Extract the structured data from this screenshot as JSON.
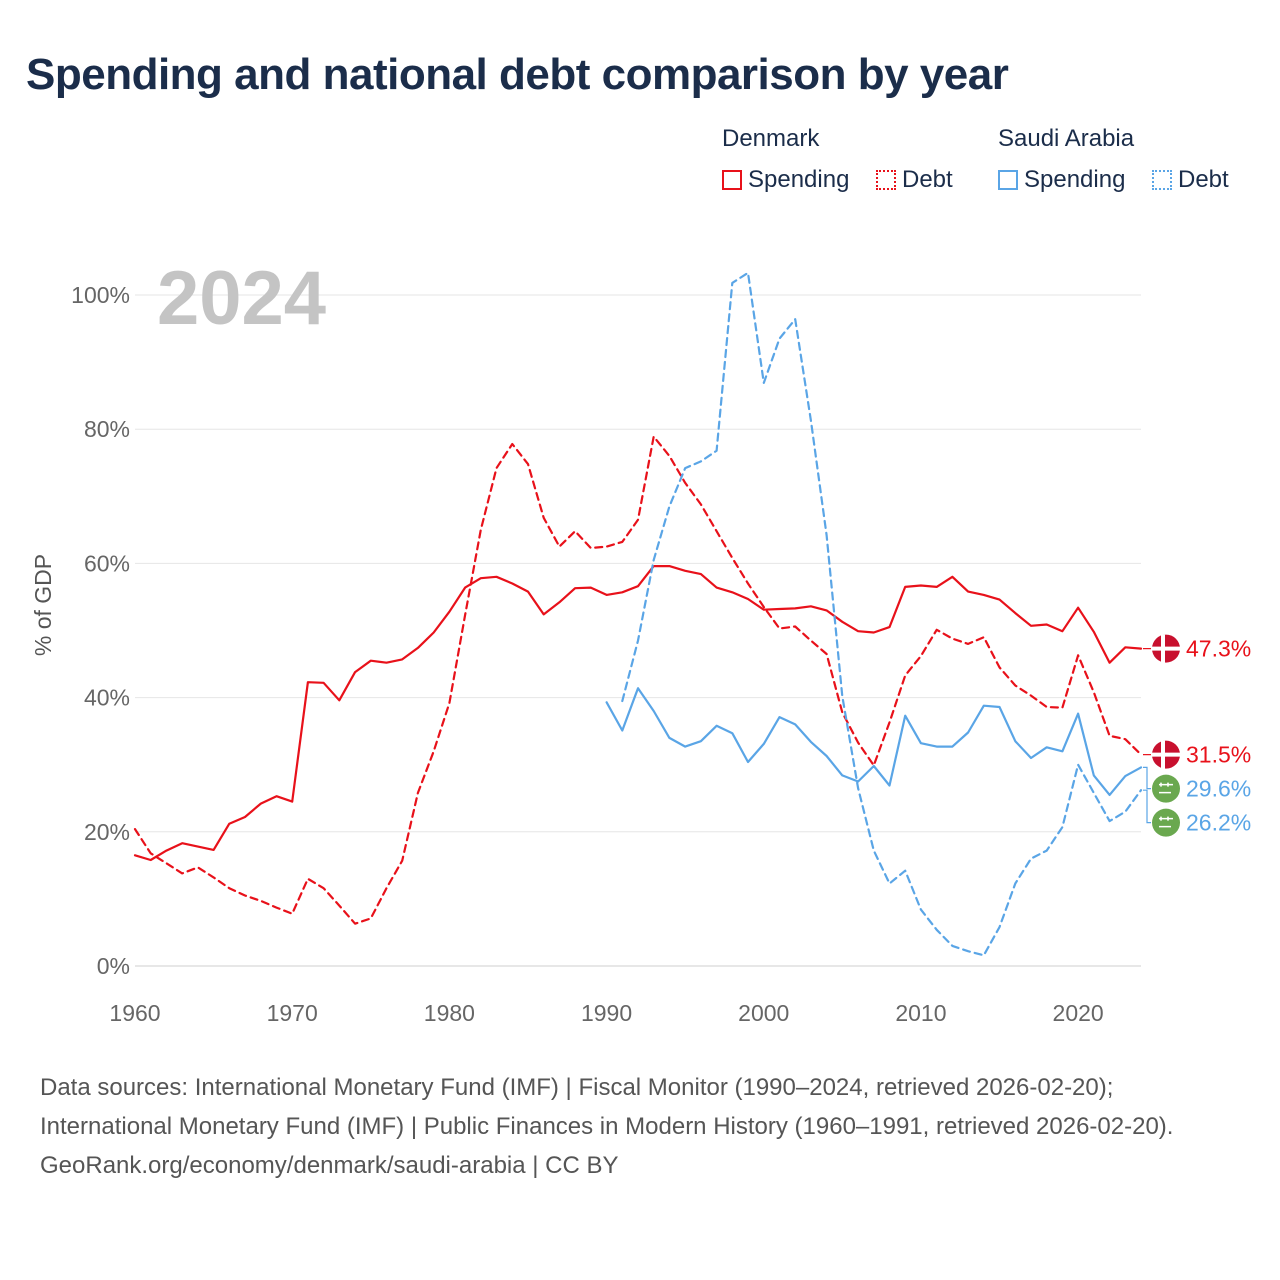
{
  "title": "Spending and national debt comparison by year",
  "legend": {
    "groups": [
      {
        "country": "Denmark",
        "color": "#e8111a",
        "items": [
          "Spending",
          "Debt"
        ]
      },
      {
        "country": "Saudi Arabia",
        "color": "#5aa5e6",
        "items": [
          "Spending",
          "Debt"
        ]
      }
    ]
  },
  "year_watermark": "2024",
  "sources": {
    "text": "Data sources: International Monetary Fund (IMF) | Fiscal Monitor (1990–2024, retrieved 2026-02-20); International Monetary Fund (IMF) | Public Finances in Modern History (1960–1991, retrieved 2026-02-20).",
    "credit": "GeoRank.org/economy/denmark/saudi-arabia | CC BY"
  },
  "chart_data": {
    "type": "line",
    "title": "Spending and national debt comparison by year",
    "xlabel": "",
    "ylabel": "% of GDP",
    "xlim": [
      1960,
      2024
    ],
    "ylim": [
      0,
      100
    ],
    "x_ticks": [
      1960,
      1970,
      1980,
      1990,
      2000,
      2010,
      2020
    ],
    "y_ticks": [
      0,
      20,
      40,
      60,
      80,
      100
    ],
    "y_tick_labels": [
      "0%",
      "20%",
      "40%",
      "60%",
      "80%",
      "100%"
    ],
    "grid": true,
    "series": [
      {
        "name": "Denmark Spending",
        "country": "Denmark",
        "measure": "Spending",
        "color": "#e8111a",
        "dash": "solid",
        "end_label": "47.3%",
        "flag": "denmark",
        "x": [
          1960,
          1961,
          1962,
          1963,
          1964,
          1965,
          1966,
          1967,
          1968,
          1969,
          1970,
          1971,
          1972,
          1973,
          1974,
          1975,
          1976,
          1977,
          1978,
          1979,
          1980,
          1981,
          1982,
          1983,
          1984,
          1985,
          1986,
          1987,
          1988,
          1989,
          1990,
          1991,
          1992,
          1993,
          1994,
          1995,
          1996,
          1997,
          1998,
          1999,
          2000,
          2001,
          2002,
          2003,
          2004,
          2005,
          2006,
          2007,
          2008,
          2009,
          2010,
          2011,
          2012,
          2013,
          2014,
          2015,
          2016,
          2017,
          2018,
          2019,
          2020,
          2021,
          2022,
          2023,
          2024
        ],
        "values": [
          16.5,
          15.8,
          17.2,
          18.3,
          17.8,
          17.3,
          21.2,
          22.2,
          24.2,
          25.3,
          24.5,
          42.3,
          42.2,
          39.6,
          43.8,
          45.5,
          45.2,
          45.7,
          47.4,
          49.7,
          52.8,
          56.4,
          57.8,
          58.0,
          57.0,
          55.8,
          52.4,
          54.2,
          56.3,
          56.4,
          55.3,
          55.7,
          56.6,
          59.6,
          59.6,
          58.9,
          58.4,
          56.4,
          55.7,
          54.7,
          53.1,
          53.2,
          53.3,
          53.6,
          53.0,
          51.3,
          49.9,
          49.7,
          50.5,
          56.5,
          56.7,
          56.5,
          58.0,
          55.8,
          55.3,
          54.6,
          52.6,
          50.7,
          50.9,
          49.9,
          53.4,
          49.8,
          45.2,
          47.5,
          47.3
        ]
      },
      {
        "name": "Denmark Debt",
        "country": "Denmark",
        "measure": "Debt",
        "color": "#e8111a",
        "dash": "dashed",
        "end_label": "31.5%",
        "flag": "denmark",
        "x": [
          1960,
          1961,
          1962,
          1963,
          1964,
          1965,
          1966,
          1967,
          1968,
          1969,
          1970,
          1971,
          1972,
          1973,
          1974,
          1975,
          1976,
          1977,
          1978,
          1979,
          1980,
          1981,
          1982,
          1983,
          1984,
          1985,
          1986,
          1987,
          1988,
          1989,
          1990,
          1991,
          1992,
          1993,
          1994,
          1995,
          1996,
          1997,
          1998,
          1999,
          2000,
          2001,
          2002,
          2003,
          2004,
          2005,
          2006,
          2007,
          2008,
          2009,
          2010,
          2011,
          2012,
          2013,
          2014,
          2015,
          2016,
          2017,
          2018,
          2019,
          2020,
          2021,
          2022,
          2023,
          2024
        ],
        "values": [
          20.4,
          16.8,
          15.3,
          13.8,
          14.7,
          13.2,
          11.6,
          10.5,
          9.7,
          8.7,
          7.8,
          13.0,
          11.6,
          9.0,
          6.3,
          7.1,
          11.6,
          15.7,
          25.8,
          32.0,
          39.2,
          52.3,
          65.0,
          74.2,
          77.8,
          74.8,
          66.8,
          62.5,
          64.8,
          62.3,
          62.5,
          63.2,
          66.5,
          78.9,
          76.0,
          72.0,
          68.8,
          64.8,
          60.8,
          57.0,
          53.5,
          50.3,
          50.6,
          48.5,
          46.5,
          37.8,
          33.3,
          29.9,
          36.3,
          43.3,
          46.2,
          50.1,
          48.8,
          48.0,
          49.0,
          44.5,
          41.8,
          40.3,
          38.6,
          38.5,
          46.3,
          40.8,
          34.3,
          33.8,
          31.5
        ]
      },
      {
        "name": "Saudi Arabia Spending",
        "country": "Saudi Arabia",
        "measure": "Spending",
        "color": "#5aa5e6",
        "dash": "solid",
        "end_label": "29.6%",
        "flag": "saudi-arabia",
        "x": [
          1990,
          1991,
          1992,
          1993,
          1994,
          1995,
          1996,
          1997,
          1998,
          1999,
          2000,
          2001,
          2002,
          2003,
          2004,
          2005,
          2006,
          2007,
          2008,
          2009,
          2010,
          2011,
          2012,
          2013,
          2014,
          2015,
          2016,
          2017,
          2018,
          2019,
          2020,
          2021,
          2022,
          2023,
          2024
        ],
        "values": [
          39.3,
          35.1,
          41.4,
          38.0,
          34.0,
          32.7,
          33.5,
          35.8,
          34.7,
          30.4,
          33.1,
          37.1,
          36.0,
          33.4,
          31.3,
          28.4,
          27.5,
          29.8,
          26.9,
          37.3,
          33.2,
          32.7,
          32.7,
          34.8,
          38.8,
          38.6,
          33.5,
          31.0,
          32.6,
          32.0,
          37.6,
          28.4,
          25.5,
          28.3,
          29.6
        ]
      },
      {
        "name": "Saudi Arabia Debt",
        "country": "Saudi Arabia",
        "measure": "Debt",
        "color": "#5aa5e6",
        "dash": "dashed",
        "end_label": "26.2%",
        "flag": "saudi-arabia",
        "x": [
          1991,
          1992,
          1993,
          1994,
          1995,
          1996,
          1997,
          1998,
          1999,
          2000,
          2001,
          2002,
          2003,
          2004,
          2005,
          2006,
          2007,
          2008,
          2009,
          2010,
          2011,
          2012,
          2013,
          2014,
          2015,
          2016,
          2017,
          2018,
          2019,
          2020,
          2021,
          2022,
          2023,
          2024
        ],
        "values": [
          39.5,
          48.5,
          60.5,
          68.5,
          74.2,
          75.2,
          76.8,
          101.8,
          103.3,
          86.9,
          93.5,
          96.4,
          81.3,
          64.2,
          40.2,
          26.5,
          17.2,
          12.3,
          14.2,
          8.4,
          5.4,
          3.0,
          2.2,
          1.6,
          5.8,
          12.3,
          16.0,
          17.2,
          20.7,
          30.0,
          25.8,
          21.6,
          23.0,
          26.2
        ]
      }
    ]
  }
}
